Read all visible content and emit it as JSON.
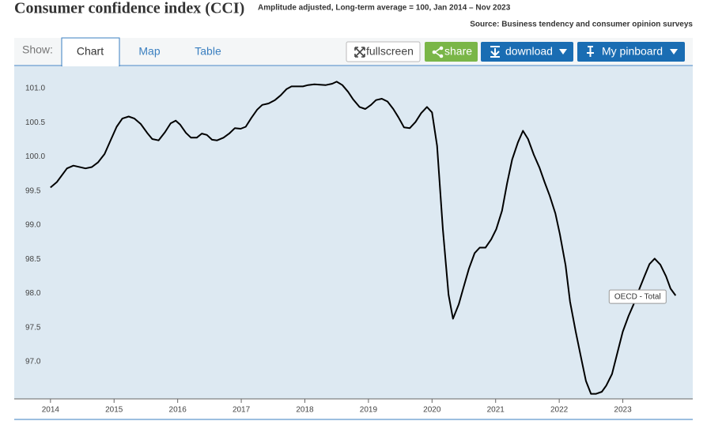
{
  "header": {
    "title": "Consumer confidence index (CCI)",
    "subtitle": "Amplitude adjusted, Long-term average = 100, Jan 2014 – Nov 2023",
    "source": "Source: Business tendency and consumer opinion surveys"
  },
  "toolbar": {
    "show_label": "Show:",
    "tabs": [
      "Chart",
      "Map",
      "Table"
    ],
    "buttons": [
      "fullscreen",
      "share",
      "download",
      "My pinboard"
    ]
  },
  "chart_data": {
    "type": "line",
    "x": [
      2014.0,
      2014.1,
      2014.26,
      2014.36,
      2014.55,
      2014.65,
      2014.75,
      2014.85,
      2014.95,
      2015.04,
      2015.13,
      2015.23,
      2015.32,
      2015.42,
      2015.52,
      2015.6,
      2015.7,
      2015.8,
      2015.89,
      2015.97,
      2016.04,
      2016.13,
      2016.21,
      2016.3,
      2016.38,
      2016.46,
      2016.54,
      2016.62,
      2016.72,
      2016.81,
      2016.9,
      2016.99,
      2017.07,
      2017.16,
      2017.25,
      2017.33,
      2017.43,
      2017.53,
      2017.62,
      2017.71,
      2017.79,
      2017.97,
      2018.05,
      2018.15,
      2018.33,
      2018.43,
      2018.5,
      2018.59,
      2018.68,
      2018.76,
      2018.86,
      2018.95,
      2019.04,
      2019.12,
      2019.21,
      2019.3,
      2019.39,
      2019.47,
      2019.56,
      2019.65,
      2019.74,
      2019.83,
      2019.92,
      2020.0,
      2020.08,
      2020.17,
      2020.26,
      2020.33,
      2020.42,
      2020.49,
      2020.58,
      2020.67,
      2020.75,
      2020.84,
      2020.93,
      2021.01,
      2021.1,
      2021.18,
      2021.26,
      2021.35,
      2021.43,
      2021.51,
      2021.6,
      2021.69,
      2021.77,
      2021.85,
      2021.94,
      2022.01,
      2022.1,
      2022.17,
      2022.26,
      2022.35,
      2022.42,
      2022.5,
      2022.58,
      2022.67,
      2022.74,
      2022.83,
      2022.92,
      2023.0,
      2023.09,
      2023.17,
      2023.25,
      2023.34,
      2023.42,
      2023.5,
      2023.59,
      2023.68,
      2023.75,
      2023.83
    ],
    "series": [
      {
        "name": "OECD - Total",
        "color": "#000000",
        "values": [
          99.55,
          99.63,
          99.83,
          99.87,
          99.83,
          99.85,
          99.92,
          100.04,
          100.25,
          100.44,
          100.56,
          100.59,
          100.56,
          100.48,
          100.35,
          100.26,
          100.24,
          100.36,
          100.49,
          100.53,
          100.47,
          100.35,
          100.28,
          100.28,
          100.34,
          100.32,
          100.25,
          100.24,
          100.28,
          100.34,
          100.42,
          100.41,
          100.44,
          100.57,
          100.69,
          100.76,
          100.78,
          100.83,
          100.9,
          100.99,
          101.03,
          101.03,
          101.05,
          101.06,
          101.05,
          101.07,
          101.1,
          101.05,
          100.95,
          100.84,
          100.73,
          100.7,
          100.76,
          100.83,
          100.85,
          100.81,
          100.7,
          100.58,
          100.43,
          100.42,
          100.51,
          100.64,
          100.73,
          100.65,
          100.16,
          98.94,
          97.98,
          97.63,
          97.84,
          98.07,
          98.36,
          98.59,
          98.67,
          98.67,
          98.79,
          98.94,
          99.21,
          99.61,
          99.96,
          100.21,
          100.38,
          100.26,
          100.03,
          99.84,
          99.63,
          99.43,
          99.17,
          98.87,
          98.41,
          97.88,
          97.44,
          97.03,
          96.72,
          96.53,
          96.53,
          96.56,
          96.65,
          96.82,
          97.15,
          97.44,
          97.67,
          97.84,
          98.04,
          98.25,
          98.43,
          98.51,
          98.42,
          98.25,
          98.07,
          97.97
        ]
      }
    ],
    "xlim": [
      2013.43,
      2024.1
    ],
    "xticks": [
      2014,
      2015,
      2016,
      2017,
      2018,
      2019,
      2020,
      2021,
      2022,
      2023
    ],
    "ylim": [
      96.456,
      101.324
    ],
    "yticks": [
      {
        "value": 97,
        "label": "97.0"
      },
      97.5,
      {
        "value": 98,
        "label": "98.0"
      },
      98.5,
      {
        "value": 99,
        "label": "99.0"
      },
      99.5,
      {
        "value": 100,
        "label": "100.0"
      },
      100.5,
      {
        "value": 101,
        "label": "101.0"
      }
    ],
    "grid": false
  }
}
